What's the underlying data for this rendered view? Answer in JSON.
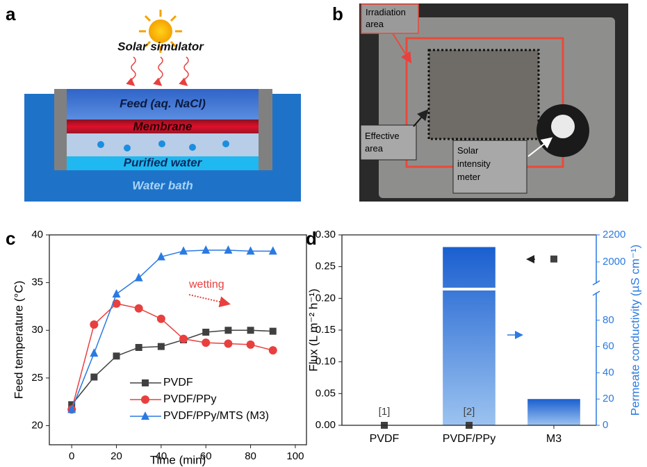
{
  "panel_labels": [
    "a",
    "b",
    "c",
    "d"
  ],
  "diagram": {
    "sun": "Solar simulator",
    "feed": "Feed (aq. NaCl)",
    "membrane": "Membrane",
    "purified": "Purified water",
    "bath": "Water bath"
  },
  "photo": {
    "irradiation": [
      "Irradiation",
      "area"
    ],
    "effective": [
      "Effective",
      "area"
    ],
    "meter": [
      "Solar",
      "intensity",
      "meter"
    ]
  },
  "chart_data": [
    {
      "type": "line",
      "x_label": "Time (min)",
      "y_label": "Feed temperature (°C)",
      "x": [
        0,
        10,
        20,
        30,
        40,
        50,
        60,
        70,
        80,
        90
      ],
      "xlim": [
        -10,
        105
      ],
      "xticks": [
        0,
        20,
        40,
        60,
        80,
        100
      ],
      "ylim": [
        18,
        40
      ],
      "yticks": [
        20,
        25,
        30,
        35,
        40
      ],
      "series": [
        {
          "name": "PVDF",
          "color": "#404040",
          "marker": "square",
          "values": [
            22.2,
            25.1,
            27.3,
            28.2,
            28.3,
            29.0,
            29.8,
            30.0,
            30.0,
            29.9
          ]
        },
        {
          "name": "PVDF/PPy",
          "color": "#e8403f",
          "marker": "circle",
          "values": [
            21.7,
            30.6,
            32.8,
            32.3,
            31.2,
            29.1,
            28.7,
            28.6,
            28.5,
            27.9
          ]
        },
        {
          "name": "PVDF/PPy/MTS (M3)",
          "color": "#2a7ae2",
          "marker": "triangle",
          "values": [
            21.7,
            27.6,
            33.8,
            35.5,
            37.7,
            38.3,
            38.4,
            38.4,
            38.3,
            38.3
          ]
        }
      ],
      "annotation": {
        "text": "wetting",
        "color": "#e8403f"
      }
    },
    {
      "type": "bar",
      "y_label": "Flux (L m⁻² h⁻¹)",
      "y2_label": "Permeate conductivity (µS cm⁻¹)",
      "categories": [
        "PVDF",
        "PVDF/PPy",
        "M3"
      ],
      "ylim": [
        0,
        0.3
      ],
      "yticks": [
        {
          "value": 0,
          "label": "0.00"
        },
        {
          "value": 0.05,
          "label": "0.05"
        },
        {
          "value": 0.1,
          "label": "0.10"
        },
        {
          "value": 0.15,
          "label": "0.15"
        },
        {
          "value": 0.2,
          "label": "0.20"
        },
        {
          "value": 0.25,
          "label": "0.25"
        },
        {
          "value": 0.3,
          "label": "0.30"
        }
      ],
      "y2lim": [
        0,
        2200
      ],
      "y2break": [
        100,
        1850
      ],
      "y2ticks": [
        0,
        20,
        40,
        60,
        80,
        2000,
        2200
      ],
      "y2color": "#2a7ae2",
      "series": [
        {
          "color": "#404040",
          "marker": "square",
          "values": [
            0,
            0,
            0.262
          ]
        },
        {
          "axis": "y2",
          "color": "#1a6fd8",
          "values": [
            null,
            2110,
            20
          ]
        }
      ],
      "annotations": [
        "[1]",
        "[2]"
      ]
    }
  ]
}
